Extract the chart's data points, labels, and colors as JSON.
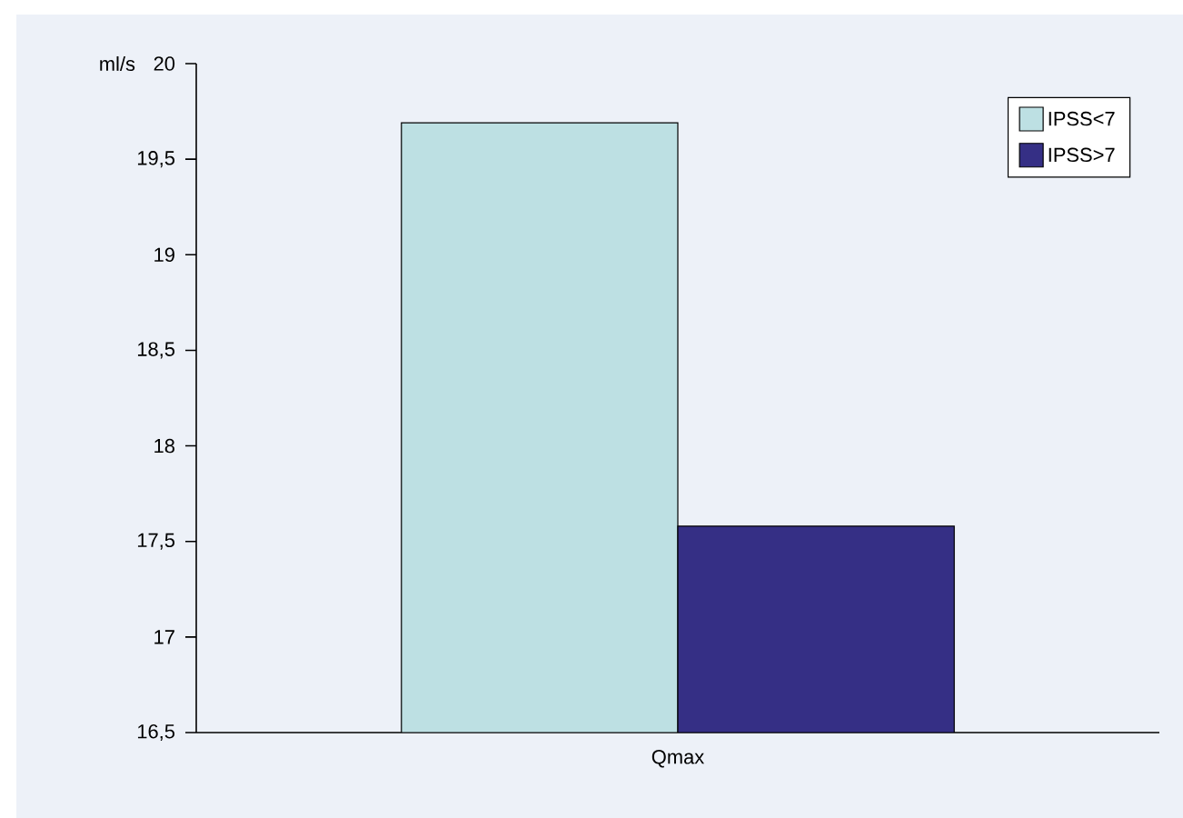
{
  "chart_data": {
    "type": "bar",
    "ylabel": "ml/s",
    "categories": [
      "Qmax"
    ],
    "series": [
      {
        "name": "IPSS<7",
        "color": "#bde0e3",
        "values": [
          19.69
        ]
      },
      {
        "name": "IPSS>7",
        "color": "#352f85",
        "values": [
          17.58
        ]
      }
    ],
    "ylim": [
      16.5,
      20
    ],
    "yticks": [
      {
        "value": 16.5,
        "label": "16,5"
      },
      17,
      {
        "value": 17.5,
        "label": "17,5"
      },
      18,
      {
        "value": 18.5,
        "label": "18,5"
      },
      19,
      {
        "value": 19.5,
        "label": "19,5"
      },
      20
    ],
    "legend": "top right",
    "grid": false
  }
}
